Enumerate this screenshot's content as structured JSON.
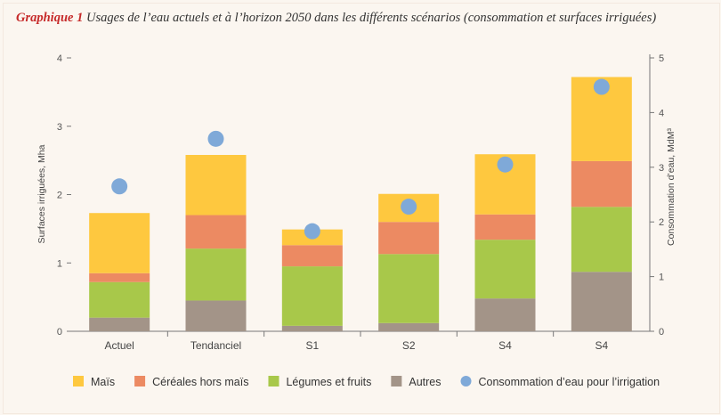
{
  "title": {
    "label": "Graphique 1",
    "text": "Usages de l’eau actuels et à l’horizon 2050 dans les différents scénarios (consommation et surfaces irriguées)"
  },
  "chart_data": {
    "type": "bar",
    "stacked": true,
    "categories": [
      "Actuel",
      "Tendanciel",
      "S1",
      "S2",
      "S4",
      "S4"
    ],
    "series": [
      {
        "name": "Autres",
        "color": "#a39488",
        "values": [
          0.2,
          0.45,
          0.08,
          0.12,
          0.48,
          0.87
        ]
      },
      {
        "name": "Légumes et fruits",
        "color": "#a8c84a",
        "values": [
          0.52,
          0.76,
          0.87,
          1.01,
          0.86,
          0.95
        ]
      },
      {
        "name": "Céréales hors maïs",
        "color": "#ec8a62",
        "values": [
          0.13,
          0.49,
          0.31,
          0.47,
          0.37,
          0.67
        ]
      },
      {
        "name": "Maïs",
        "color": "#fec83f",
        "values": [
          0.88,
          0.88,
          0.23,
          0.41,
          0.88,
          1.23
        ]
      }
    ],
    "overlay": {
      "name": "Consommation d’eau pour l’irrigation",
      "type": "scatter",
      "axis": "right",
      "color": "#7fa9d8",
      "values": [
        2.65,
        3.52,
        1.83,
        2.28,
        3.05,
        4.47
      ]
    },
    "ylabel": "Surfaces irriguées, Mha",
    "ylim": [
      0,
      4
    ],
    "yticks": [
      0,
      1,
      2,
      3,
      4
    ],
    "y2label": "Consommation d’eau, MdM³",
    "y2lim": [
      0,
      5
    ],
    "y2ticks": [
      0,
      1,
      2,
      3,
      4,
      5
    ],
    "grid": false,
    "legend_position": "bottom",
    "legend_order": [
      "Maïs",
      "Céréales hors maïs",
      "Légumes et fruits",
      "Autres",
      "Consommation d’eau pour l’irrigation"
    ]
  }
}
